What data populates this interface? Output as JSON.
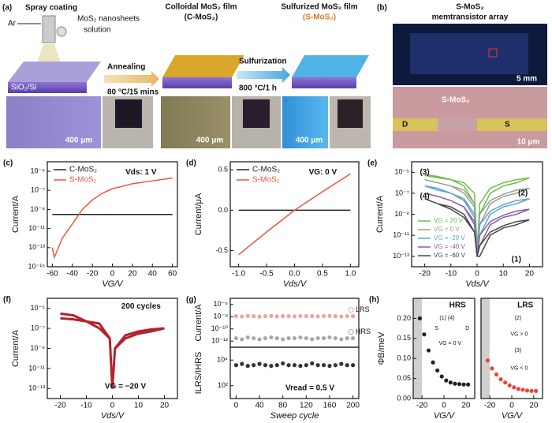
{
  "panel_a": {
    "label": "(a)",
    "spray": "Spray coating",
    "gas": "Ar",
    "solution_1": "MoS₂ nanosheets",
    "solution_2": "solution",
    "substrate": "SiO₂/Si",
    "step_1": "Annealing",
    "step_1_cond": "80 °C/15 mins",
    "film_1_1": "Colloidal MoS₂ film",
    "film_1_2": "(C-MoS₂)",
    "step_2": "Sulfurization",
    "step_2_cond": "800 °C/1 h",
    "film_2_1": "Sulfurized MoS₂ film",
    "film_2_2": "(S-MoS₂)",
    "scale_1": "400 μm",
    "scale_2": "400 μm",
    "scale_3": "400 μm"
  },
  "panel_b": {
    "label": "(b)",
    "title_1": "S-MoS₂",
    "title_2": "memtransistor array",
    "scale_1": "5 mm",
    "device": "S-MoS₂",
    "drain": "D",
    "source": "S",
    "scale_2": "10 μm"
  },
  "chart_data": [
    {
      "type": "line",
      "label": "(c)",
      "xlabel": "VG/V",
      "ylabel": "Current/A",
      "ylog": true,
      "legend": "upper left",
      "xlim": [
        -65,
        65
      ],
      "xticks": [
        -60,
        -40,
        -20,
        0,
        20,
        40,
        60
      ],
      "ylim": [
        1e-15,
        0.0001
      ],
      "yticks": [
        {
          "value": 1e-15,
          "label": "10⁻¹⁵"
        },
        {
          "value": 1e-13,
          "label": "10⁻¹³"
        },
        {
          "value": 1e-11,
          "label": "10⁻¹¹"
        },
        {
          "value": 1e-09,
          "label": "10⁻⁹"
        },
        {
          "value": 1e-07,
          "label": "10⁻⁷"
        },
        {
          "value": 1e-05,
          "label": "10⁻⁵"
        }
      ],
      "annotations": [
        "Vds: 1 V"
      ],
      "series": [
        {
          "name": "C-MoS₂",
          "color": "#222222",
          "x": [
            -60,
            60
          ],
          "values": [
            3e-10,
            3e-10
          ]
        },
        {
          "name": "S-MoS₂",
          "color": "#f0553c",
          "x": [
            -60,
            -58,
            -56,
            -50,
            -40,
            -30,
            -20,
            -10,
            0,
            20,
            40,
            60
          ],
          "values": [
            1e-13,
            1e-14,
            3e-14,
            1e-12,
            3e-11,
            1e-09,
            1e-08,
            5e-08,
            1.5e-07,
            5e-07,
            1e-06,
            2e-06
          ]
        }
      ]
    },
    {
      "type": "line",
      "label": "(d)",
      "xlabel": "Vds/V",
      "ylabel": "Current/μA",
      "legend": "upper left",
      "xlim": [
        -1.15,
        1.15
      ],
      "xticks": [
        {
          "value": -1,
          "label": "-1.0"
        },
        {
          "value": -0.5,
          "label": "-0.5"
        },
        {
          "value": 0,
          "label": "0.0"
        },
        {
          "value": 0.5,
          "label": "0.5"
        },
        {
          "value": 1,
          "label": "1.0"
        }
      ],
      "ylim": [
        -0.7,
        0.6
      ],
      "yticks": [
        {
          "value": -0.5,
          "label": "-0.5"
        },
        {
          "value": 0,
          "label": "0.0"
        },
        {
          "value": 0.5,
          "label": "0.5"
        }
      ],
      "annotations": [
        "VG: 0 V"
      ],
      "series": [
        {
          "name": "C-MoS₂",
          "color": "#222222",
          "x": [
            -1,
            1
          ],
          "values": [
            0,
            0
          ]
        },
        {
          "name": "S-MoS₂",
          "color": "#f0553c",
          "x": [
            -1,
            -0.5,
            0,
            0.5,
            1
          ],
          "values": [
            -0.55,
            -0.27,
            0,
            0.23,
            0.45
          ]
        }
      ]
    },
    {
      "type": "line",
      "label": "(e)",
      "xlabel": "Vds/V",
      "ylabel": "Current/A",
      "ylog": true,
      "legend": "lower left",
      "xlim": [
        -25,
        25
      ],
      "xticks": [
        -20,
        -10,
        0,
        10,
        20
      ],
      "ylim": [
        1e-14,
        0.0001
      ],
      "yticks": [
        {
          "value": 1e-13,
          "label": "10⁻¹³"
        },
        {
          "value": 1e-11,
          "label": "10⁻¹¹"
        },
        {
          "value": 1e-09,
          "label": "10⁻⁹"
        },
        {
          "value": 1e-07,
          "label": "10⁻⁷"
        },
        {
          "value": 1e-05,
          "label": "10⁻⁵"
        }
      ],
      "annotations": [
        "(1)",
        "(2)",
        "(3)",
        "(4)"
      ],
      "series": [
        {
          "name": "VG = 20 V",
          "color": "#6fbf4a",
          "x": [
            -20,
            -15,
            -10,
            -5,
            -1,
            0,
            1,
            5,
            10,
            15,
            20,
            15,
            10,
            5,
            1,
            0,
            -1,
            -5,
            -10,
            -15,
            -20
          ],
          "values": [
            5e-06,
            3e-06,
            2e-06,
            1e-06,
            1e-07,
            1e-12,
            1e-09,
            1e-07,
            5e-07,
            1e-06,
            3e-06,
            2e-06,
            1e-06,
            3e-07,
            1e-08,
            1e-13,
            1e-08,
            5e-07,
            2e-06,
            4e-06,
            6e-06
          ]
        },
        {
          "name": "VG = 0 V",
          "color": "#9aa18c",
          "x": [
            -20,
            -15,
            -10,
            -5,
            -1,
            0,
            1,
            5,
            10,
            15,
            20,
            15,
            10,
            5,
            1,
            0,
            -1,
            -5,
            -10,
            -15,
            -20
          ],
          "values": [
            2e-06,
            1e-06,
            5e-07,
            2e-07,
            1e-08,
            1e-13,
            1e-10,
            1e-08,
            5e-08,
            1e-07,
            3e-07,
            2e-07,
            8e-08,
            2e-08,
            1e-09,
            1e-13,
            5e-09,
            1e-07,
            5e-07,
            1e-06,
            2e-06
          ]
        },
        {
          "name": "VG = -20 V",
          "color": "#5fa7c9",
          "x": [
            -20,
            -15,
            -10,
            -5,
            -1,
            0,
            1,
            5,
            10,
            15,
            20,
            15,
            10,
            5,
            1,
            0,
            -1,
            -5,
            -10,
            -15,
            -20
          ],
          "values": [
            5e-07,
            2e-07,
            1e-07,
            3e-08,
            1e-09,
            1e-13,
            1e-11,
            1e-09,
            5e-09,
            1e-08,
            3e-08,
            2e-08,
            8e-09,
            2e-09,
            1e-10,
            1e-13,
            5e-10,
            2e-08,
            1e-07,
            3e-07,
            5e-07
          ]
        },
        {
          "name": "VG = -40 V",
          "color": "#8a5ea8",
          "x": [
            -20,
            -15,
            -10,
            -5,
            -1,
            0,
            1,
            5,
            10,
            15,
            20,
            15,
            10,
            5,
            1,
            0,
            -1,
            -5,
            -10,
            -15,
            -20
          ],
          "values": [
            1e-07,
            5e-08,
            2e-08,
            5e-09,
            2e-10,
            1e-13,
            1e-12,
            1e-10,
            5e-10,
            1e-09,
            3e-09,
            2e-09,
            8e-10,
            2e-10,
            1e-11,
            1e-13,
            1e-10,
            5e-09,
            2e-08,
            5e-08,
            1e-07
          ]
        },
        {
          "name": "VG = -60 V",
          "color": "#444444",
          "x": [
            -20,
            -15,
            -10,
            -5,
            -1,
            0,
            1,
            5,
            10,
            15,
            20,
            15,
            10,
            5,
            1,
            0,
            -1,
            -5,
            -10,
            -15,
            -20
          ],
          "values": [
            3e-08,
            1e-08,
            3e-09,
            5e-10,
            2e-11,
            1e-13,
            1e-13,
            1e-11,
            5e-11,
            1e-10,
            3e-10,
            2e-10,
            8e-11,
            2e-11,
            1e-12,
            1e-13,
            2e-11,
            1e-09,
            5e-09,
            1e-08,
            3e-08
          ]
        }
      ]
    },
    {
      "type": "line",
      "label": "(f)",
      "xlabel": "Vds/V",
      "ylabel": "Current/A",
      "ylog": true,
      "xlim": [
        -25,
        25
      ],
      "xticks": [
        -20,
        -10,
        0,
        10,
        20
      ],
      "ylim": [
        1e-14,
        0.0001
      ],
      "yticks": [
        {
          "value": 1e-13,
          "label": "10⁻¹³"
        },
        {
          "value": 1e-11,
          "label": "10⁻¹¹"
        },
        {
          "value": 1e-09,
          "label": "10⁻⁹"
        },
        {
          "value": 1e-07,
          "label": "10⁻⁷"
        },
        {
          "value": 1e-05,
          "label": "10⁻⁵"
        }
      ],
      "annotations": [
        "200 cycles",
        "VG = −20 V"
      ],
      "series": [
        {
          "color": "#b5222e",
          "x": [
            -20,
            -15,
            -10,
            -5,
            -1,
            0,
            1,
            5,
            10,
            15,
            20,
            15,
            10,
            5,
            1,
            0,
            -1,
            -5,
            -10,
            -15,
            -20
          ],
          "values": [
            1e-06,
            8e-07,
            5e-07,
            3e-07,
            1e-08,
            1e-13,
            1e-09,
            1e-08,
            3e-08,
            5e-08,
            1e-07,
            8e-08,
            5e-08,
            2e-08,
            1e-09,
            1e-13,
            1e-08,
            1e-07,
            5e-07,
            2e-06,
            3e-06
          ]
        }
      ]
    },
    {
      "type": "scatter",
      "label": "(g)",
      "ylabel": "Current/A",
      "ylog": true,
      "legend": "right",
      "xlim": [
        -10,
        210
      ],
      "ylim": [
        1e-13,
        1e-05
      ],
      "yticks": [
        {
          "value": 1e-12,
          "label": "10⁻¹²"
        },
        {
          "value": 1e-10,
          "label": "10⁻¹⁰"
        },
        {
          "value": 1e-08,
          "label": "10⁻⁸"
        },
        {
          "value": 1e-06,
          "label": "10⁻⁶"
        }
      ],
      "series": [
        {
          "name": "LRS",
          "color": "#e8a6a6",
          "x": [
            0,
            10,
            20,
            30,
            40,
            50,
            60,
            70,
            80,
            90,
            100,
            110,
            120,
            130,
            140,
            150,
            160,
            170,
            180,
            190,
            200
          ],
          "values": [
            1.2e-08,
            1.1e-08,
            1.3e-08,
            1.2e-08,
            1e-08,
            1.2e-08,
            1.3e-08,
            1.1e-08,
            1.2e-08,
            1.2e-08,
            1.1e-08,
            1.3e-08,
            1.2e-08,
            1.2e-08,
            1.1e-08,
            1.2e-08,
            1.3e-08,
            1.2e-08,
            1.1e-08,
            1.2e-08,
            1.2e-08
          ]
        },
        {
          "name": "HRS",
          "color": "#a8a8a8",
          "x": [
            0,
            10,
            20,
            30,
            40,
            50,
            60,
            70,
            80,
            90,
            100,
            110,
            120,
            130,
            140,
            150,
            160,
            170,
            180,
            190,
            200
          ],
          "values": [
            3e-12,
            2e-12,
            4e-12,
            3e-12,
            2e-12,
            3e-12,
            4e-12,
            3e-12,
            2e-12,
            3e-12,
            3e-12,
            4e-12,
            3e-12,
            2e-12,
            3e-12,
            3e-12,
            4e-12,
            3e-12,
            2e-12,
            3e-12,
            3e-12
          ]
        }
      ]
    },
    {
      "type": "scatter",
      "xlabel": "Sweep cycle",
      "ylabel": "ILRS/IHRS",
      "ylog": true,
      "xlim": [
        -10,
        210
      ],
      "xticks": [
        0,
        40,
        80,
        120,
        160,
        200
      ],
      "ylim": [
        10,
        100000.0
      ],
      "yticks": [
        {
          "value": 100,
          "label": "10²"
        },
        {
          "value": 10000,
          "label": "10⁴"
        }
      ],
      "annotations": [
        "Vread = 0.5 V"
      ],
      "series": [
        {
          "color": "#333333",
          "x": [
            0,
            10,
            20,
            30,
            40,
            50,
            60,
            70,
            80,
            90,
            100,
            110,
            120,
            130,
            140,
            150,
            160,
            170,
            180,
            190,
            200
          ],
          "values": [
            4000,
            5000,
            3500,
            4000,
            5000,
            4000,
            3500,
            4000,
            5500,
            4000,
            4000,
            3500,
            4000,
            5500,
            4000,
            4000,
            3500,
            4000,
            5000,
            4000,
            4000
          ]
        }
      ]
    },
    {
      "type": "scatter",
      "label": "(h)",
      "xlabel": "VG/V",
      "ylabel": "ΦB/meV",
      "xlim": [
        -28,
        28
      ],
      "xticks": [
        -20,
        0,
        20
      ],
      "ylim": [
        0,
        0.25
      ],
      "yticks": [
        {
          "value": 0,
          "label": "0.00"
        },
        {
          "value": 0.05,
          "label": "0.05"
        },
        {
          "value": 0.1,
          "label": "0.10"
        },
        {
          "value": 0.15,
          "label": "0.15"
        },
        {
          "value": 0.2,
          "label": "0.20"
        }
      ],
      "annotations": [
        "HRS",
        "(1) (4)",
        "S",
        "D",
        "VG = 0 V"
      ],
      "series": [
        {
          "color": "#222222",
          "x": [
            -22,
            -18,
            -14,
            -10,
            -6,
            -2,
            2,
            6,
            10,
            14,
            18,
            22
          ],
          "values": [
            0.2,
            0.16,
            0.12,
            0.09,
            0.07,
            0.055,
            0.045,
            0.04,
            0.037,
            0.036,
            0.035,
            0.035
          ]
        }
      ]
    },
    {
      "type": "scatter",
      "xlabel": "VG/V",
      "xlim": [
        -28,
        28
      ],
      "xticks": [
        -20,
        0,
        20
      ],
      "ylim": [
        0,
        0.25
      ],
      "annotations": [
        "LRS",
        "(2)",
        "(3)",
        "VG > 0",
        "VG < 0"
      ],
      "series": [
        {
          "color": "#e8473a",
          "x": [
            -22,
            -18,
            -14,
            -10,
            -6,
            -2,
            2,
            6,
            10,
            14,
            18,
            22
          ],
          "values": [
            0.095,
            0.075,
            0.06,
            0.048,
            0.04,
            0.033,
            0.028,
            0.024,
            0.022,
            0.02,
            0.019,
            0.019
          ]
        }
      ]
    }
  ]
}
